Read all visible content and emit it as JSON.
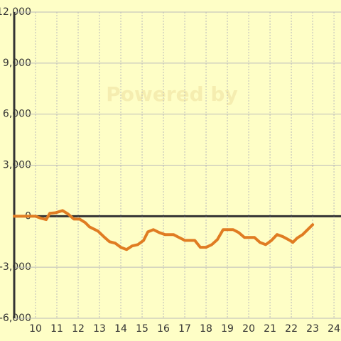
{
  "chart_data": {
    "type": "line",
    "watermark": "Powered by",
    "x": [
      9,
      10,
      10.27,
      10.5,
      10.67,
      10.93,
      11.27,
      11.53,
      11.8,
      12.07,
      12.33,
      12.53,
      12.93,
      13.2,
      13.47,
      13.73,
      14,
      14.27,
      14.53,
      14.8,
      15.07,
      15.27,
      15.53,
      15.8,
      16.07,
      16.47,
      16.73,
      17,
      17.47,
      17.73,
      18,
      18.27,
      18.53,
      18.8,
      19.27,
      19.53,
      19.8,
      20.27,
      20.53,
      20.8,
      21.07,
      21.33,
      21.6,
      21.93,
      22.07,
      22.27,
      22.53,
      23
    ],
    "series": [
      {
        "color": "#e07c22",
        "values": [
          0,
          0,
          -125,
          -200,
          170,
          200,
          330,
          125,
          -170,
          -170,
          -375,
          -625,
          -875,
          -1200,
          -1500,
          -1580,
          -1830,
          -1960,
          -1750,
          -1670,
          -1420,
          -920,
          -790,
          -960,
          -1080,
          -1080,
          -1250,
          -1420,
          -1420,
          -1830,
          -1830,
          -1670,
          -1375,
          -790,
          -790,
          -960,
          -1250,
          -1250,
          -1540,
          -1670,
          -1420,
          -1080,
          -1200,
          -1420,
          -1540,
          -1290,
          -1080,
          -500
        ]
      }
    ],
    "xlim": [
      9,
      24.33
    ],
    "xticks": [
      10,
      11,
      12,
      13,
      14,
      15,
      16,
      17,
      18,
      19,
      20,
      21,
      22,
      23,
      24
    ],
    "ylim": [
      -6000,
      12000
    ],
    "yticks": [
      {
        "value": -6000,
        "label": "-6,000"
      },
      {
        "value": -3000,
        "label": "-3,000"
      },
      0,
      {
        "value": 3000,
        "label": "3,000"
      },
      {
        "value": 6000,
        "label": "6,000"
      },
      {
        "value": 9000,
        "label": "9,000"
      },
      {
        "value": 12000,
        "label": "12,000"
      }
    ],
    "grid": true
  }
}
